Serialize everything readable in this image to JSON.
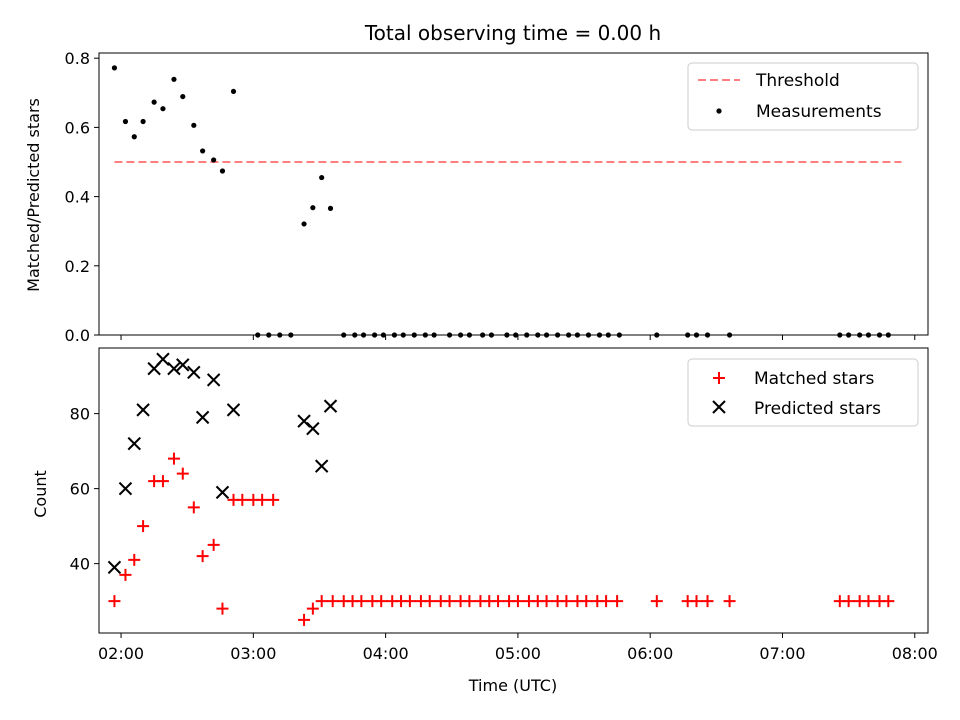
{
  "chart_data": [
    {
      "type": "scatter",
      "title": "Total observing time = 0.00 h",
      "xlabel": "",
      "ylabel": "Matched/Predicted stars",
      "xlim": [
        "01:50",
        "08:06"
      ],
      "ylim": [
        0,
        0.815
      ],
      "yticks": [
        "0.0",
        "0.2",
        "0.4",
        "0.6",
        "0.8"
      ],
      "grid": false,
      "legend_position": "top-right",
      "threshold": {
        "name": "Threshold",
        "value": 0.5,
        "x_range": [
          "01:57",
          "07:54"
        ],
        "color": "#ff7f7f"
      },
      "series": [
        {
          "name": "Measurements",
          "color": "#000000",
          "points": [
            [
              "01:57",
              0.772
            ],
            [
              "02:02",
              0.617
            ],
            [
              "02:06",
              0.573
            ],
            [
              "02:10",
              0.617
            ],
            [
              "02:15",
              0.673
            ],
            [
              "02:19",
              0.654
            ],
            [
              "02:24",
              0.739
            ],
            [
              "02:28",
              0.689
            ],
            [
              "02:33",
              0.606
            ],
            [
              "02:37",
              0.532
            ],
            [
              "02:42",
              0.506
            ],
            [
              "02:46",
              0.474
            ],
            [
              "02:51",
              0.704
            ],
            [
              "03:02",
              0.0
            ],
            [
              "03:07",
              0.0
            ],
            [
              "03:12",
              0.0
            ],
            [
              "03:17",
              0.0
            ],
            [
              "03:23",
              0.321
            ],
            [
              "03:27",
              0.368
            ],
            [
              "03:31",
              0.455
            ],
            [
              "03:35",
              0.366
            ],
            [
              "03:41",
              0.0
            ],
            [
              "03:46",
              0.0
            ],
            [
              "03:50",
              0.0
            ],
            [
              "03:55",
              0.0
            ],
            [
              "03:59",
              0.0
            ],
            [
              "04:04",
              0.0
            ],
            [
              "04:08",
              0.0
            ],
            [
              "04:13",
              0.0
            ],
            [
              "04:18",
              0.0
            ],
            [
              "04:22",
              0.0
            ],
            [
              "04:29",
              0.0
            ],
            [
              "04:34",
              0.0
            ],
            [
              "04:38",
              0.0
            ],
            [
              "04:44",
              0.0
            ],
            [
              "04:48",
              0.0
            ],
            [
              "04:55",
              0.0
            ],
            [
              "04:59",
              0.0
            ],
            [
              "05:04",
              0.0
            ],
            [
              "05:09",
              0.0
            ],
            [
              "05:13",
              0.0
            ],
            [
              "05:18",
              0.0
            ],
            [
              "05:23",
              0.0
            ],
            [
              "05:27",
              0.0
            ],
            [
              "05:32",
              0.0
            ],
            [
              "05:37",
              0.0
            ],
            [
              "05:41",
              0.0
            ],
            [
              "05:46",
              0.0
            ],
            [
              "06:03",
              0.0
            ],
            [
              "06:17",
              0.0
            ],
            [
              "06:21",
              0.0
            ],
            [
              "06:26",
              0.0
            ],
            [
              "06:36",
              0.0
            ],
            [
              "07:26",
              0.0
            ],
            [
              "07:30",
              0.0
            ],
            [
              "07:35",
              0.0
            ],
            [
              "07:39",
              0.0
            ],
            [
              "07:44",
              0.0
            ],
            [
              "07:48",
              0.0
            ]
          ]
        }
      ]
    },
    {
      "type": "scatter",
      "title": "",
      "xlabel": "Time (UTC)",
      "ylabel": "Count",
      "xlim": [
        "01:50",
        "08:06"
      ],
      "xticks": [
        "02:00",
        "03:00",
        "04:00",
        "05:00",
        "06:00",
        "07:00",
        "08:00"
      ],
      "ylim": [
        21.5,
        97.5
      ],
      "yticks": [
        "40",
        "60",
        "80"
      ],
      "grid": false,
      "legend_position": "top-right",
      "series": [
        {
          "name": "Matched stars",
          "marker": "+",
          "color": "#ff0000",
          "points": [
            [
              "01:57",
              30
            ],
            [
              "02:02",
              37
            ],
            [
              "02:06",
              41
            ],
            [
              "02:10",
              50
            ],
            [
              "02:15",
              62
            ],
            [
              "02:19",
              62
            ],
            [
              "02:24",
              68
            ],
            [
              "02:28",
              64
            ],
            [
              "02:33",
              55
            ],
            [
              "02:37",
              42
            ],
            [
              "02:42",
              45
            ],
            [
              "02:46",
              28
            ],
            [
              "02:51",
              57
            ],
            [
              "02:55",
              57
            ],
            [
              "03:00",
              57
            ],
            [
              "03:04",
              57
            ],
            [
              "03:09",
              57
            ],
            [
              "03:23",
              25
            ],
            [
              "03:27",
              28
            ],
            [
              "03:31",
              30
            ],
            [
              "03:36",
              30
            ],
            [
              "03:41",
              30
            ],
            [
              "03:45",
              30
            ],
            [
              "03:49",
              30
            ],
            [
              "03:54",
              30
            ],
            [
              "03:58",
              30
            ],
            [
              "04:03",
              30
            ],
            [
              "04:07",
              30
            ],
            [
              "04:11",
              30
            ],
            [
              "04:16",
              30
            ],
            [
              "04:20",
              30
            ],
            [
              "04:25",
              30
            ],
            [
              "04:29",
              30
            ],
            [
              "04:34",
              30
            ],
            [
              "04:38",
              30
            ],
            [
              "04:43",
              30
            ],
            [
              "04:47",
              30
            ],
            [
              "04:51",
              30
            ],
            [
              "04:56",
              30
            ],
            [
              "05:00",
              30
            ],
            [
              "05:05",
              30
            ],
            [
              "05:09",
              30
            ],
            [
              "05:13",
              30
            ],
            [
              "05:18",
              30
            ],
            [
              "05:22",
              30
            ],
            [
              "05:27",
              30
            ],
            [
              "05:31",
              30
            ],
            [
              "05:36",
              30
            ],
            [
              "05:40",
              30
            ],
            [
              "05:45",
              30
            ],
            [
              "06:03",
              30
            ],
            [
              "06:17",
              30
            ],
            [
              "06:21",
              30
            ],
            [
              "06:26",
              30
            ],
            [
              "06:36",
              30
            ],
            [
              "07:26",
              30
            ],
            [
              "07:30",
              30
            ],
            [
              "07:35",
              30
            ],
            [
              "07:39",
              30
            ],
            [
              "07:44",
              30
            ],
            [
              "07:48",
              30
            ]
          ]
        },
        {
          "name": "Predicted stars",
          "marker": "x",
          "color": "#000000",
          "points": [
            [
              "01:57",
              39
            ],
            [
              "02:02",
              60
            ],
            [
              "02:06",
              72
            ],
            [
              "02:10",
              81
            ],
            [
              "02:15",
              92
            ],
            [
              "02:19",
              94.5
            ],
            [
              "02:24",
              92
            ],
            [
              "02:28",
              93
            ],
            [
              "02:33",
              91
            ],
            [
              "02:37",
              79
            ],
            [
              "02:42",
              89
            ],
            [
              "02:46",
              59
            ],
            [
              "02:51",
              81
            ],
            [
              "03:23",
              78
            ],
            [
              "03:27",
              76
            ],
            [
              "03:31",
              66
            ],
            [
              "03:35",
              82
            ]
          ]
        }
      ]
    }
  ]
}
